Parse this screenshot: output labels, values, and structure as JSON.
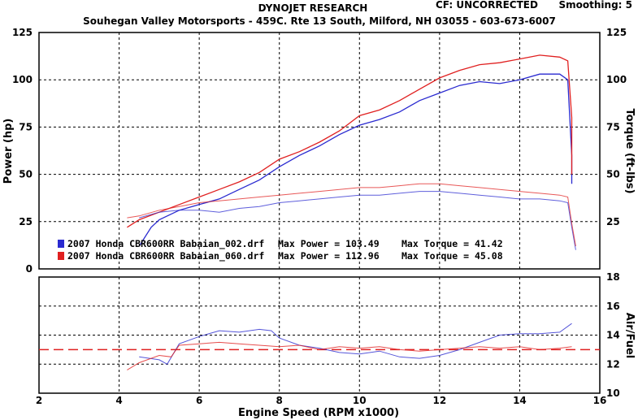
{
  "header": {
    "title": "DYNOJET RESEARCH",
    "cf": "CF: UNCORRECTED",
    "smoothing": "Smoothing: 5",
    "shop": "Souhegan Valley Motorsports - 459C. Rte 13 South, Milford, NH 03055 - 603-673-6007"
  },
  "colors": {
    "run1": "#2a2ad0",
    "run2": "#e02020",
    "ref_line": "#e02020",
    "grid": "#000000",
    "frame": "#000000"
  },
  "legend": [
    {
      "file": "2007 Honda CBR600RR Babaian_002.drf",
      "max_power": "Max Power = 103.49",
      "max_torque": "Max Torque = 41.42",
      "color": "#2a2ad0"
    },
    {
      "file": "2007 Honda CBR600RR Babaian_060.drf",
      "max_power": "Max Power = 112.96",
      "max_torque": "Max Torque = 45.08",
      "color": "#e02020"
    }
  ],
  "chart_data": [
    {
      "type": "line",
      "panel": "power-torque",
      "xlabel": "Engine Speed (RPM x1000)",
      "ylabel": "Power (hp)",
      "y2label": "Torque (ft-lbs)",
      "xlim": [
        2,
        16
      ],
      "ylim": [
        0,
        125
      ],
      "y2lim": [
        0,
        125
      ],
      "xticks": [
        "2",
        "4",
        "6",
        "8",
        "10",
        "12",
        "14",
        "16"
      ],
      "yticks": [
        "0",
        "25",
        "50",
        "75",
        "100",
        "125"
      ],
      "y2ticks": [
        "25",
        "50",
        "75",
        "100",
        "125"
      ],
      "grid": true,
      "series": [
        {
          "name": "2007 Honda CBR600RR Babaian_002.drf",
          "measure": "power",
          "color": "#2a2ad0",
          "x": [
            4.5,
            4.8,
            5.0,
            5.5,
            6.0,
            6.5,
            7.0,
            7.5,
            8.0,
            8.5,
            9.0,
            9.5,
            10.0,
            10.5,
            11.0,
            11.5,
            12.0,
            12.5,
            13.0,
            13.5,
            14.0,
            14.5,
            15.0,
            15.2,
            15.3,
            15.3
          ],
          "y": [
            12,
            22,
            26,
            31,
            34,
            37,
            42,
            47,
            54,
            60,
            65,
            71,
            76,
            79,
            83,
            89,
            93,
            97,
            99,
            98,
            100,
            103,
            103,
            100,
            60,
            45
          ]
        },
        {
          "name": "2007 Honda CBR600RR Babaian_060.drf",
          "measure": "power",
          "color": "#e02020",
          "x": [
            4.2,
            4.5,
            5.0,
            5.5,
            6.0,
            6.5,
            7.0,
            7.5,
            8.0,
            8.5,
            9.0,
            9.5,
            10.0,
            10.5,
            11.0,
            11.5,
            12.0,
            12.5,
            13.0,
            13.5,
            14.0,
            14.5,
            15.0,
            15.2,
            15.3,
            15.3
          ],
          "y": [
            22,
            26,
            30,
            34,
            38,
            42,
            46,
            51,
            58,
            62,
            67,
            73,
            81,
            84,
            89,
            95,
            101,
            105,
            108,
            109,
            111,
            113,
            112,
            110,
            80,
            50
          ]
        },
        {
          "name": "2007 Honda CBR600RR Babaian_002.drf",
          "measure": "torque",
          "color": "#2a2ad0",
          "x": [
            4.5,
            5.0,
            5.5,
            6.0,
            6.5,
            7.0,
            7.5,
            8.0,
            8.5,
            9.0,
            9.5,
            10.0,
            10.5,
            11.0,
            11.5,
            12.0,
            12.5,
            13.0,
            13.5,
            14.0,
            14.5,
            15.0,
            15.2,
            15.3,
            15.4
          ],
          "y": [
            27,
            30,
            31,
            31,
            30,
            32,
            33,
            35,
            36,
            37,
            38,
            39,
            39,
            40,
            41,
            41,
            40,
            39,
            38,
            37,
            37,
            36,
            35,
            22,
            10
          ]
        },
        {
          "name": "2007 Honda CBR600RR Babaian_060.drf",
          "measure": "torque",
          "color": "#e02020",
          "x": [
            4.2,
            4.5,
            5.0,
            5.5,
            6.0,
            6.5,
            7.0,
            7.5,
            8.0,
            8.5,
            9.0,
            9.5,
            10.0,
            10.5,
            11.0,
            11.5,
            12.0,
            12.5,
            13.0,
            13.5,
            14.0,
            14.5,
            15.0,
            15.2,
            15.3,
            15.4
          ],
          "y": [
            27,
            28,
            31,
            33,
            35,
            36,
            37,
            38,
            39,
            40,
            41,
            42,
            43,
            43,
            44,
            45,
            45,
            44,
            43,
            42,
            41,
            40,
            39,
            38,
            24,
            12
          ]
        }
      ]
    },
    {
      "type": "line",
      "panel": "air-fuel",
      "xlabel": "Engine Speed (RPM x1000)",
      "y2label": "Air/Fuel",
      "xlim": [
        2,
        16
      ],
      "y2lim": [
        10,
        18
      ],
      "xticks": [
        "2",
        "4",
        "6",
        "8",
        "10",
        "12",
        "14",
        "16"
      ],
      "y2ticks": [
        "10",
        "12",
        "14",
        "16",
        "18"
      ],
      "grid": true,
      "reference_line": {
        "y": 13.0,
        "color": "#e02020",
        "style": "dashed"
      },
      "series": [
        {
          "name": "2007 Honda CBR600RR Babaian_002.drf",
          "color": "#2a2ad0",
          "x": [
            4.5,
            5.0,
            5.2,
            5.5,
            6.0,
            6.5,
            7.0,
            7.5,
            7.8,
            8.0,
            8.5,
            9.0,
            9.5,
            10.0,
            10.5,
            11.0,
            11.5,
            12.0,
            12.5,
            13.0,
            13.5,
            14.0,
            14.5,
            15.0,
            15.3
          ],
          "y": [
            12.5,
            12.3,
            12.0,
            13.4,
            13.9,
            14.3,
            14.2,
            14.4,
            14.3,
            13.8,
            13.3,
            13.1,
            12.8,
            12.7,
            12.9,
            12.5,
            12.4,
            12.6,
            13.0,
            13.5,
            14.0,
            14.1,
            14.1,
            14.2,
            14.8
          ]
        },
        {
          "name": "2007 Honda CBR600RR Babaian_060.drf",
          "color": "#e02020",
          "x": [
            4.2,
            4.5,
            5.0,
            5.3,
            5.5,
            6.0,
            6.5,
            7.0,
            7.5,
            8.0,
            8.5,
            9.0,
            9.5,
            10.0,
            10.5,
            11.0,
            11.5,
            12.0,
            12.5,
            13.0,
            13.5,
            14.0,
            14.5,
            15.0,
            15.3
          ],
          "y": [
            11.6,
            12.1,
            12.6,
            12.5,
            13.3,
            13.4,
            13.5,
            13.4,
            13.3,
            13.2,
            13.3,
            13.0,
            13.2,
            13.1,
            13.2,
            13.0,
            12.9,
            13.0,
            13.1,
            13.2,
            13.1,
            13.2,
            13.0,
            13.1,
            13.2
          ]
        }
      ]
    }
  ]
}
